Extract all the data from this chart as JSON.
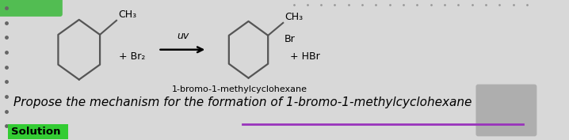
{
  "bg_color": "#d8d8d8",
  "left_dots_color": "#666666",
  "top_dots_color": "#999999",
  "plus_br2": "+ Br₂",
  "uv": "uv",
  "ch3_label": "CH₃",
  "br_label": "Br",
  "plus_hbr": "+ HBr",
  "compound_name": "1-bromo-1-methylcyclohexane",
  "bottom_text": "Propose the mechanism for the formation of 1-bromo-1-methylcyclohexane",
  "solution_text": "Solution",
  "solution_bg": "#33cc33",
  "underline_color": "#9933bb",
  "gray_box_color": "#aaaaaa",
  "line_color": "#555555",
  "font_size_chem": 9,
  "font_size_bottom": 11
}
